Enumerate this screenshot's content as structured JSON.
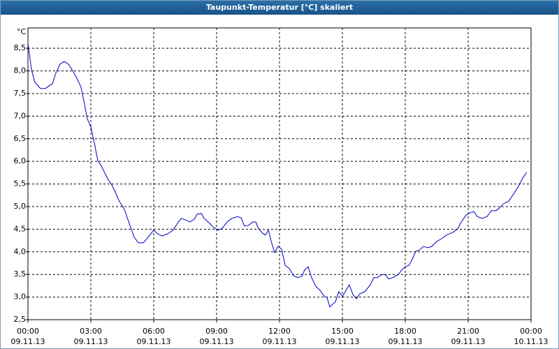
{
  "chart_data": {
    "type": "line",
    "title": "Taupunkt-Temperatur [°C] skaliert",
    "y_label": "°C",
    "color": "#0000c0",
    "grid": true,
    "xlim": [
      0,
      24
    ],
    "xticks": [
      {
        "value": 0,
        "label": "00:00",
        "date": "09.11.13"
      },
      {
        "value": 3,
        "label": "03:00",
        "date": "09.11.13"
      },
      {
        "value": 6,
        "label": "06:00",
        "date": "09.11.13"
      },
      {
        "value": 9,
        "label": "09:00",
        "date": "09.11.13"
      },
      {
        "value": 12,
        "label": "12:00",
        "date": "09.11.13"
      },
      {
        "value": 15,
        "label": "15:00",
        "date": "09.11.13"
      },
      {
        "value": 18,
        "label": "18:00",
        "date": "09.11.13"
      },
      {
        "value": 21,
        "label": "21:00",
        "date": "09.11.13"
      },
      {
        "value": 24,
        "label": "00:00",
        "date": "10.11.13"
      }
    ],
    "ylim": [
      2.5,
      8.95
    ],
    "yticks": [
      {
        "value": 2.5,
        "label": "2,5"
      },
      {
        "value": 3,
        "label": "3,0"
      },
      {
        "value": 3.5,
        "label": "3,5"
      },
      {
        "value": 4,
        "label": "4,0"
      },
      {
        "value": 4.5,
        "label": "4,5"
      },
      {
        "value": 5,
        "label": "5,0"
      },
      {
        "value": 5.5,
        "label": "5,5"
      },
      {
        "value": 6,
        "label": "6,0"
      },
      {
        "value": 6.5,
        "label": "6,5"
      },
      {
        "value": 7,
        "label": "7,0"
      },
      {
        "value": 7.5,
        "label": "7,5"
      },
      {
        "value": 8,
        "label": "8,0"
      },
      {
        "value": 8.5,
        "label": "8,5"
      }
    ],
    "x": [
      0,
      0.17,
      0.33,
      0.6,
      0.83,
      1.17,
      1.33,
      1.53,
      1.73,
      1.93,
      2.17,
      2.33,
      2.53,
      2.67,
      2.83,
      3,
      3.17,
      3.33,
      3.5,
      3.67,
      3.83,
      4,
      4.17,
      4.33,
      4.6,
      4.83,
      5.07,
      5.27,
      5.5,
      5.73,
      6,
      6.17,
      6.4,
      6.67,
      6.93,
      7.17,
      7.33,
      7.6,
      7.73,
      7.93,
      8.07,
      8.27,
      8.4,
      8.6,
      8.83,
      9.07,
      9.27,
      9.5,
      9.73,
      10,
      10.17,
      10.33,
      10.5,
      10.73,
      10.87,
      11,
      11.2,
      11.33,
      11.47,
      11.6,
      11.77,
      11.93,
      12.1,
      12.27,
      12.47,
      12.67,
      12.87,
      13.07,
      13.2,
      13.37,
      13.53,
      13.73,
      13.93,
      14.13,
      14.27,
      14.4,
      14.53,
      14.67,
      14.83,
      15,
      15.17,
      15.33,
      15.5,
      15.67,
      15.83,
      16.07,
      16.33,
      16.5,
      16.67,
      16.87,
      17.07,
      17.2,
      17.4,
      17.67,
      17.83,
      18,
      18.17,
      18.33,
      18.5,
      18.67,
      18.87,
      19.07,
      19.27,
      19.5,
      19.73,
      20,
      20.27,
      20.5,
      20.67,
      20.9,
      21.07,
      21.27,
      21.43,
      21.67,
      21.9,
      22.1,
      22.33,
      22.5,
      22.67,
      22.93,
      23.17,
      23.4,
      23.6,
      23.8
    ],
    "values": [
      8.61,
      8.02,
      7.75,
      7.61,
      7.61,
      7.72,
      7.95,
      8.15,
      8.21,
      8.15,
      7.98,
      7.84,
      7.64,
      7.33,
      6.94,
      6.76,
      6.4,
      6.02,
      5.9,
      5.74,
      5.59,
      5.48,
      5.32,
      5.14,
      4.94,
      4.63,
      4.32,
      4.2,
      4.2,
      4.32,
      4.48,
      4.4,
      4.35,
      4.4,
      4.48,
      4.66,
      4.74,
      4.69,
      4.66,
      4.72,
      4.83,
      4.85,
      4.74,
      4.66,
      4.55,
      4.48,
      4.52,
      4.66,
      4.74,
      4.78,
      4.75,
      4.57,
      4.58,
      4.66,
      4.66,
      4.51,
      4.41,
      4.37,
      4.48,
      4.24,
      3.98,
      4.12,
      4.06,
      3.7,
      3.63,
      3.47,
      3.43,
      3.46,
      3.6,
      3.67,
      3.43,
      3.24,
      3.15,
      3.02,
      2.99,
      2.78,
      2.84,
      2.9,
      3.12,
      3.01,
      3.15,
      3.27,
      3.06,
      2.96,
      3.07,
      3.12,
      3.27,
      3.43,
      3.43,
      3.5,
      3.49,
      3.4,
      3.43,
      3.5,
      3.6,
      3.67,
      3.7,
      3.83,
      4.01,
      4.04,
      4.12,
      4.09,
      4.12,
      4.23,
      4.29,
      4.38,
      4.43,
      4.51,
      4.66,
      4.81,
      4.86,
      4.89,
      4.78,
      4.74,
      4.78,
      4.91,
      4.91,
      4.97,
      5.06,
      5.12,
      5.28,
      5.45,
      5.63,
      5.76
    ]
  }
}
